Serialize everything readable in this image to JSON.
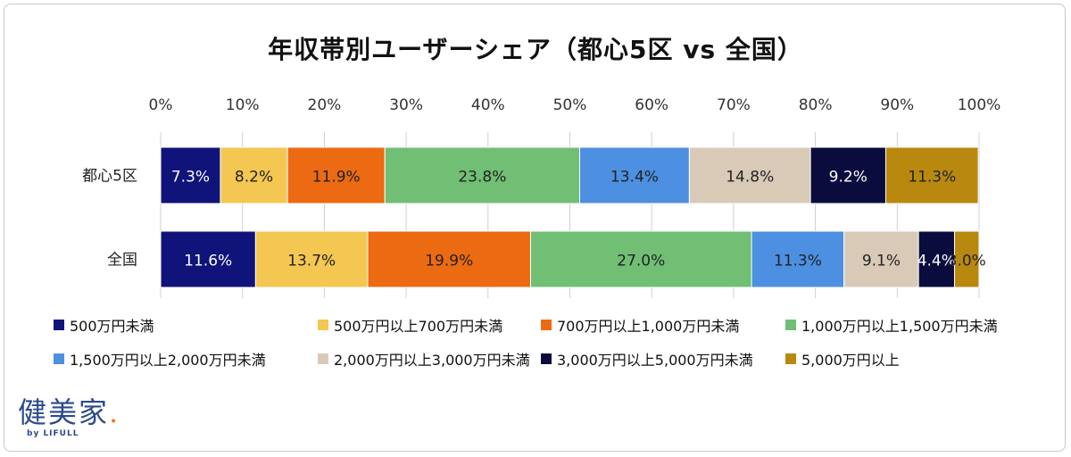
{
  "title": "年収帯別ユーザーシェア（都心5区 vs 全国）",
  "chart_data": {
    "type": "bar",
    "orientation": "horizontal",
    "stacked": "percent",
    "categories": [
      "都心5区",
      "全国"
    ],
    "x_ticks": [
      "0%",
      "10%",
      "20%",
      "30%",
      "40%",
      "50%",
      "60%",
      "70%",
      "80%",
      "90%",
      "100%"
    ],
    "xlim": [
      0,
      100
    ],
    "grid": true,
    "legend_position": "bottom",
    "series": [
      {
        "name": "500万円未満",
        "color": "#10137a",
        "label_color": "#ffffff",
        "values": [
          7.3,
          11.6
        ],
        "labels": [
          "7.3%",
          "11.6%"
        ]
      },
      {
        "name": "500万円以上700万円未満",
        "color": "#f4c752",
        "label_color": "#222222",
        "values": [
          8.2,
          13.7
        ],
        "labels": [
          "8.2%",
          "13.7%"
        ]
      },
      {
        "name": "700万円以上1,000万円未満",
        "color": "#ec6a12",
        "label_color": "#222222",
        "values": [
          11.9,
          19.9
        ],
        "labels": [
          "11.9%",
          "19.9%"
        ]
      },
      {
        "name": "1,000万円以上1,500万円未満",
        "color": "#70bf74",
        "label_color": "#222222",
        "values": [
          23.8,
          27.0
        ],
        "labels": [
          "23.8%",
          "27.0%"
        ]
      },
      {
        "name": "1,500万円以上2,000万円未満",
        "color": "#4d8fe0",
        "label_color": "#222222",
        "values": [
          13.4,
          11.3
        ],
        "labels": [
          "13.4%",
          "11.3%"
        ]
      },
      {
        "name": "2,000万円以上3,000万円未満",
        "color": "#d9cab8",
        "label_color": "#222222",
        "values": [
          14.8,
          9.1
        ],
        "labels": [
          "14.8%",
          "9.1%"
        ]
      },
      {
        "name": "3,000万円以上5,000万円未満",
        "color": "#0b0c3e",
        "label_color": "#ffffff",
        "values": [
          9.2,
          4.4
        ],
        "labels": [
          "9.2%",
          "4.4%"
        ]
      },
      {
        "name": "5,000万円以上",
        "color": "#b8880f",
        "label_color": "#222222",
        "values": [
          11.3,
          3.0
        ],
        "labels": [
          "11.3%",
          "3.0%"
        ]
      }
    ]
  },
  "logo": {
    "main": "健美家",
    "dot": ".",
    "sub": "by LIFULL"
  }
}
